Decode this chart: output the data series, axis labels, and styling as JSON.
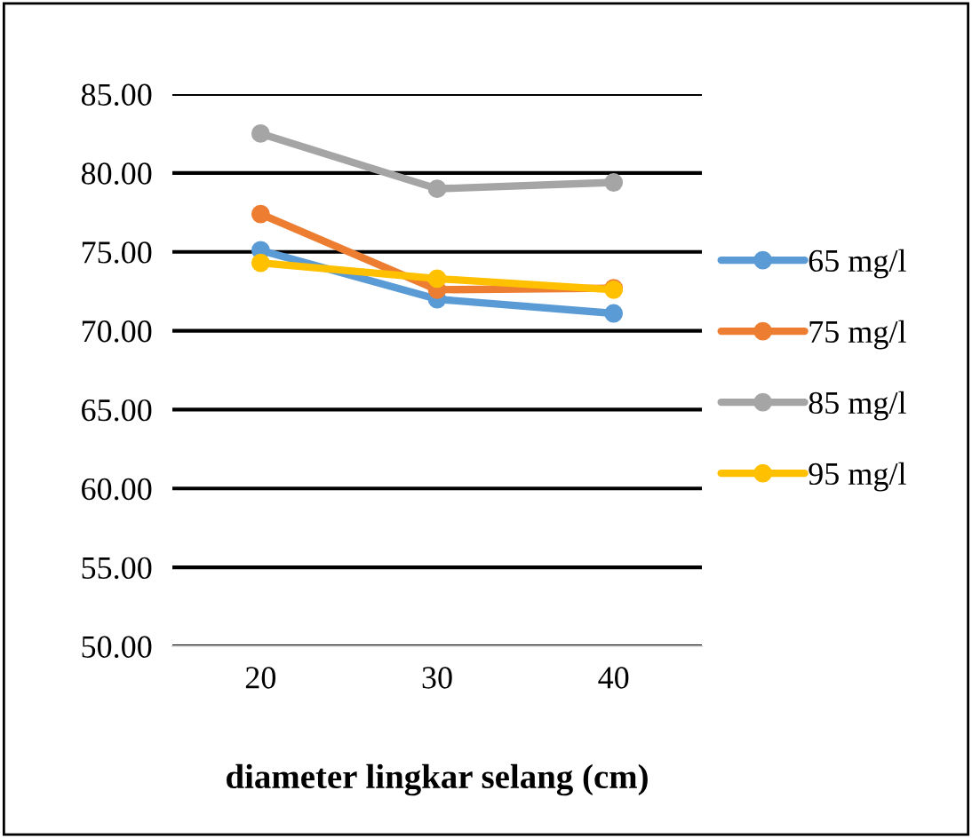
{
  "chart_data": {
    "type": "line",
    "xlabel": "diameter lingkar selang (cm)",
    "categories": [
      "20",
      "30",
      "40"
    ],
    "series": [
      {
        "name": "65 mg/l",
        "color": "#5b9bd5",
        "values": [
          75.1,
          72.0,
          71.1
        ]
      },
      {
        "name": "75 mg/l",
        "color": "#ed7d31",
        "values": [
          77.4,
          72.6,
          72.7
        ]
      },
      {
        "name": "85 mg/l",
        "color": "#a5a5a5",
        "values": [
          82.5,
          79.0,
          79.4
        ]
      },
      {
        "name": "95 mg/l",
        "color": "#ffc000",
        "values": [
          74.3,
          73.3,
          72.6
        ]
      }
    ],
    "ylim": [
      50,
      85
    ],
    "yticks": [
      {
        "value": 50,
        "label": "50.00"
      },
      {
        "value": 55,
        "label": "55.00"
      },
      {
        "value": 60,
        "label": "60.00"
      },
      {
        "value": 65,
        "label": "65.00"
      },
      {
        "value": 70,
        "label": "70.00"
      },
      {
        "value": 75,
        "label": "75.00"
      },
      {
        "value": 80,
        "label": "80.00"
      },
      {
        "value": 85,
        "label": "85.00"
      }
    ],
    "grid": "y",
    "legend": "right",
    "marker": "circle",
    "line_style": "solid"
  }
}
